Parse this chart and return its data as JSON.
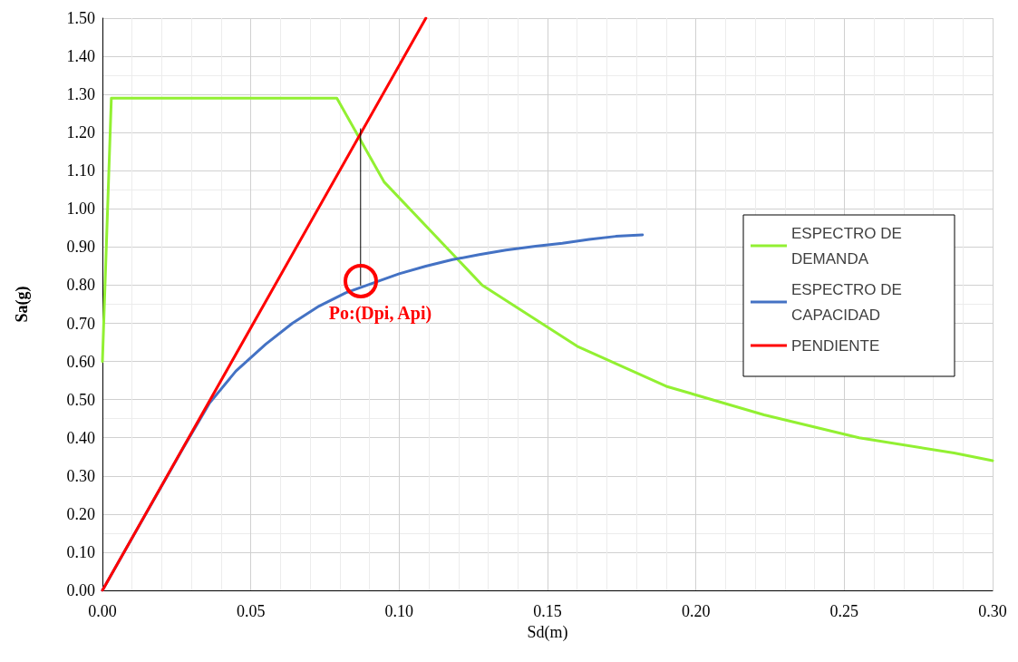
{
  "chart_data": {
    "type": "line",
    "xlabel": "Sd(m)",
    "ylabel": "Sa(g)",
    "xlim": [
      0,
      0.3
    ],
    "xticks": [
      {
        "value": 0,
        "label": "0.00"
      },
      {
        "value": 0.05,
        "label": "0.05"
      },
      {
        "value": 0.1,
        "label": "0.10"
      },
      {
        "value": 0.15,
        "label": "0.15"
      },
      {
        "value": 0.2,
        "label": "0.20"
      },
      {
        "value": 0.25,
        "label": "0.25"
      },
      {
        "value": 0.3,
        "label": "0.30"
      }
    ],
    "ylim": [
      0,
      1.5
    ],
    "yticks": [
      {
        "value": 0,
        "label": "0.00"
      },
      {
        "value": 0.1,
        "label": "0.10"
      },
      {
        "value": 0.2,
        "label": "0.20"
      },
      {
        "value": 0.3,
        "label": "0.30"
      },
      {
        "value": 0.4,
        "label": "0.40"
      },
      {
        "value": 0.5,
        "label": "0.50"
      },
      {
        "value": 0.6,
        "label": "0.60"
      },
      {
        "value": 0.7,
        "label": "0.70"
      },
      {
        "value": 0.8,
        "label": "0.80"
      },
      {
        "value": 0.9,
        "label": "0.90"
      },
      {
        "value": 1.0,
        "label": "1.00"
      },
      {
        "value": 1.1,
        "label": "1.10"
      },
      {
        "value": 1.2,
        "label": "1.20"
      },
      {
        "value": 1.3,
        "label": "1.30"
      },
      {
        "value": 1.4,
        "label": "1.40"
      },
      {
        "value": 1.5,
        "label": "1.50"
      }
    ],
    "grid": true,
    "legend": "right",
    "marker": "none",
    "line_style": "solid",
    "series": [
      {
        "name": "ESPECTRO DE DEMANDA",
        "color": "#92f032",
        "x": [
          0,
          0.003,
          0.079,
          0.095,
          0.128,
          0.16,
          0.19,
          0.223,
          0.255,
          0.287,
          0.3
        ],
        "values": [
          0.6,
          1.29,
          1.29,
          1.07,
          0.8,
          0.64,
          0.535,
          0.46,
          0.4,
          0.36,
          0.34
        ]
      },
      {
        "name": "ESPECTRO DE CAPACIDAD",
        "color": "#4472c4",
        "x": [
          0,
          0.027,
          0.036,
          0.045,
          0.055,
          0.064,
          0.073,
          0.082,
          0.091,
          0.1,
          0.109,
          0.118,
          0.127,
          0.136,
          0.146,
          0.155,
          0.164,
          0.173,
          0.182
        ],
        "values": [
          0,
          0.37,
          0.49,
          0.575,
          0.645,
          0.7,
          0.745,
          0.78,
          0.805,
          0.83,
          0.85,
          0.867,
          0.88,
          0.892,
          0.902,
          0.91,
          0.92,
          0.928,
          0.932
        ]
      },
      {
        "name": "PENDIENTE",
        "color": "#ff0000",
        "x": [
          0,
          0.109
        ],
        "values": [
          0,
          1.5
        ]
      },
      {
        "color": "#000000",
        "x": [
          0.087,
          0.087
        ],
        "values": [
          0.8,
          1.21
        ]
      }
    ],
    "annotations": [
      {
        "text": "Po:(Dpi, Api)",
        "x": 0.087,
        "y": 0.8
      }
    ]
  }
}
